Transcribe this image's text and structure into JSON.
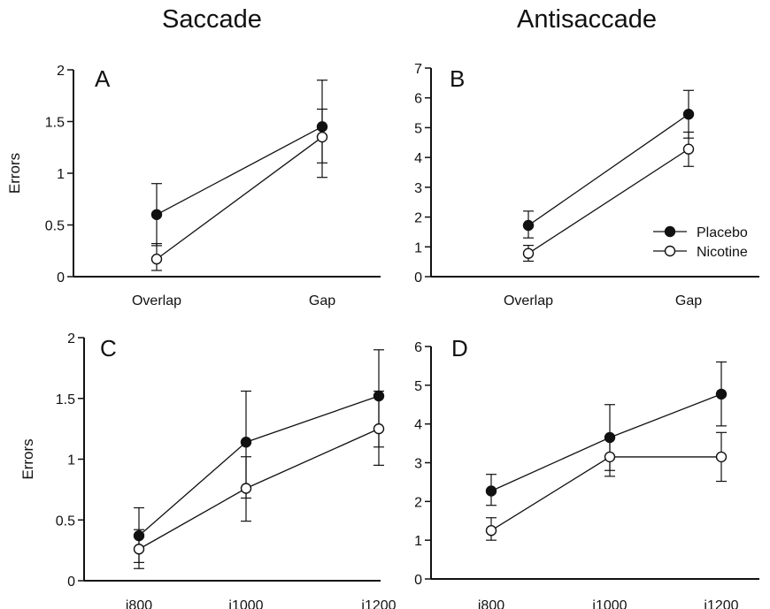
{
  "column_titles": [
    "Saccade",
    "Antisaccade"
  ],
  "legend": {
    "placement": "right of panel B",
    "entries": [
      "Placebo",
      "Nicotine"
    ]
  },
  "colors": {
    "placebo": "#111111",
    "nicotine": "#ffffff",
    "axis": "#111111"
  },
  "chart_data": [
    {
      "type": "line",
      "panel": "A",
      "ylabel": "Errors",
      "xlabel": "",
      "categories": [
        "Overlap",
        "Gap"
      ],
      "ylim": [
        0,
        2
      ],
      "yticks": [
        "0",
        "0.5",
        "1",
        "1.5",
        "2"
      ],
      "grid": false,
      "series": [
        {
          "name": "Placebo",
          "values": [
            0.6,
            1.45
          ],
          "err_low": [
            0.3,
            1.1
          ],
          "err_high": [
            0.9,
            1.9
          ]
        },
        {
          "name": "Nicotine",
          "values": [
            0.17,
            1.35
          ],
          "err_low": [
            0.06,
            0.96
          ],
          "err_high": [
            0.32,
            1.62
          ]
        }
      ]
    },
    {
      "type": "line",
      "panel": "B",
      "ylabel": "",
      "xlabel": "",
      "categories": [
        "Overlap",
        "Gap"
      ],
      "ylim": [
        0,
        7
      ],
      "yticks": [
        "0",
        "1",
        "2",
        "3",
        "4",
        "5",
        "6",
        "7"
      ],
      "grid": false,
      "series": [
        {
          "name": "Placebo",
          "values": [
            1.72,
            5.45
          ],
          "err_low": [
            1.3,
            4.65
          ],
          "err_high": [
            2.2,
            6.25
          ]
        },
        {
          "name": "Nicotine",
          "values": [
            0.78,
            4.28
          ],
          "err_low": [
            0.52,
            3.7
          ],
          "err_high": [
            1.05,
            4.85
          ]
        }
      ]
    },
    {
      "type": "line",
      "panel": "C",
      "ylabel": "Errors",
      "xlabel": "",
      "categories": [
        "i800",
        "i1000",
        "i1200"
      ],
      "ylim": [
        0,
        2
      ],
      "yticks": [
        "0",
        "0.5",
        "1",
        "1.5",
        "2"
      ],
      "grid": false,
      "series": [
        {
          "name": "Placebo",
          "values": [
            0.37,
            1.14,
            1.52
          ],
          "err_low": [
            0.15,
            0.68,
            1.1
          ],
          "err_high": [
            0.6,
            1.56,
            1.9
          ]
        },
        {
          "name": "Nicotine",
          "values": [
            0.26,
            0.76,
            1.25
          ],
          "err_low": [
            0.1,
            0.49,
            0.95
          ],
          "err_high": [
            0.42,
            1.02,
            1.56
          ]
        }
      ]
    },
    {
      "type": "line",
      "panel": "D",
      "ylabel": "",
      "xlabel": "",
      "categories": [
        "i800",
        "i1000",
        "i1200"
      ],
      "ylim": [
        0,
        6
      ],
      "yticks": [
        "0",
        "1",
        "2",
        "3",
        "4",
        "5",
        "6"
      ],
      "grid": false,
      "series": [
        {
          "name": "Placebo",
          "values": [
            2.27,
            3.65,
            4.77
          ],
          "err_low": [
            1.9,
            2.8,
            3.95
          ],
          "err_high": [
            2.7,
            4.5,
            5.6
          ]
        },
        {
          "name": "Nicotine",
          "values": [
            1.25,
            3.15,
            3.15
          ],
          "err_low": [
            1.0,
            2.65,
            2.52
          ],
          "err_high": [
            1.58,
            3.65,
            3.78
          ]
        }
      ]
    }
  ]
}
